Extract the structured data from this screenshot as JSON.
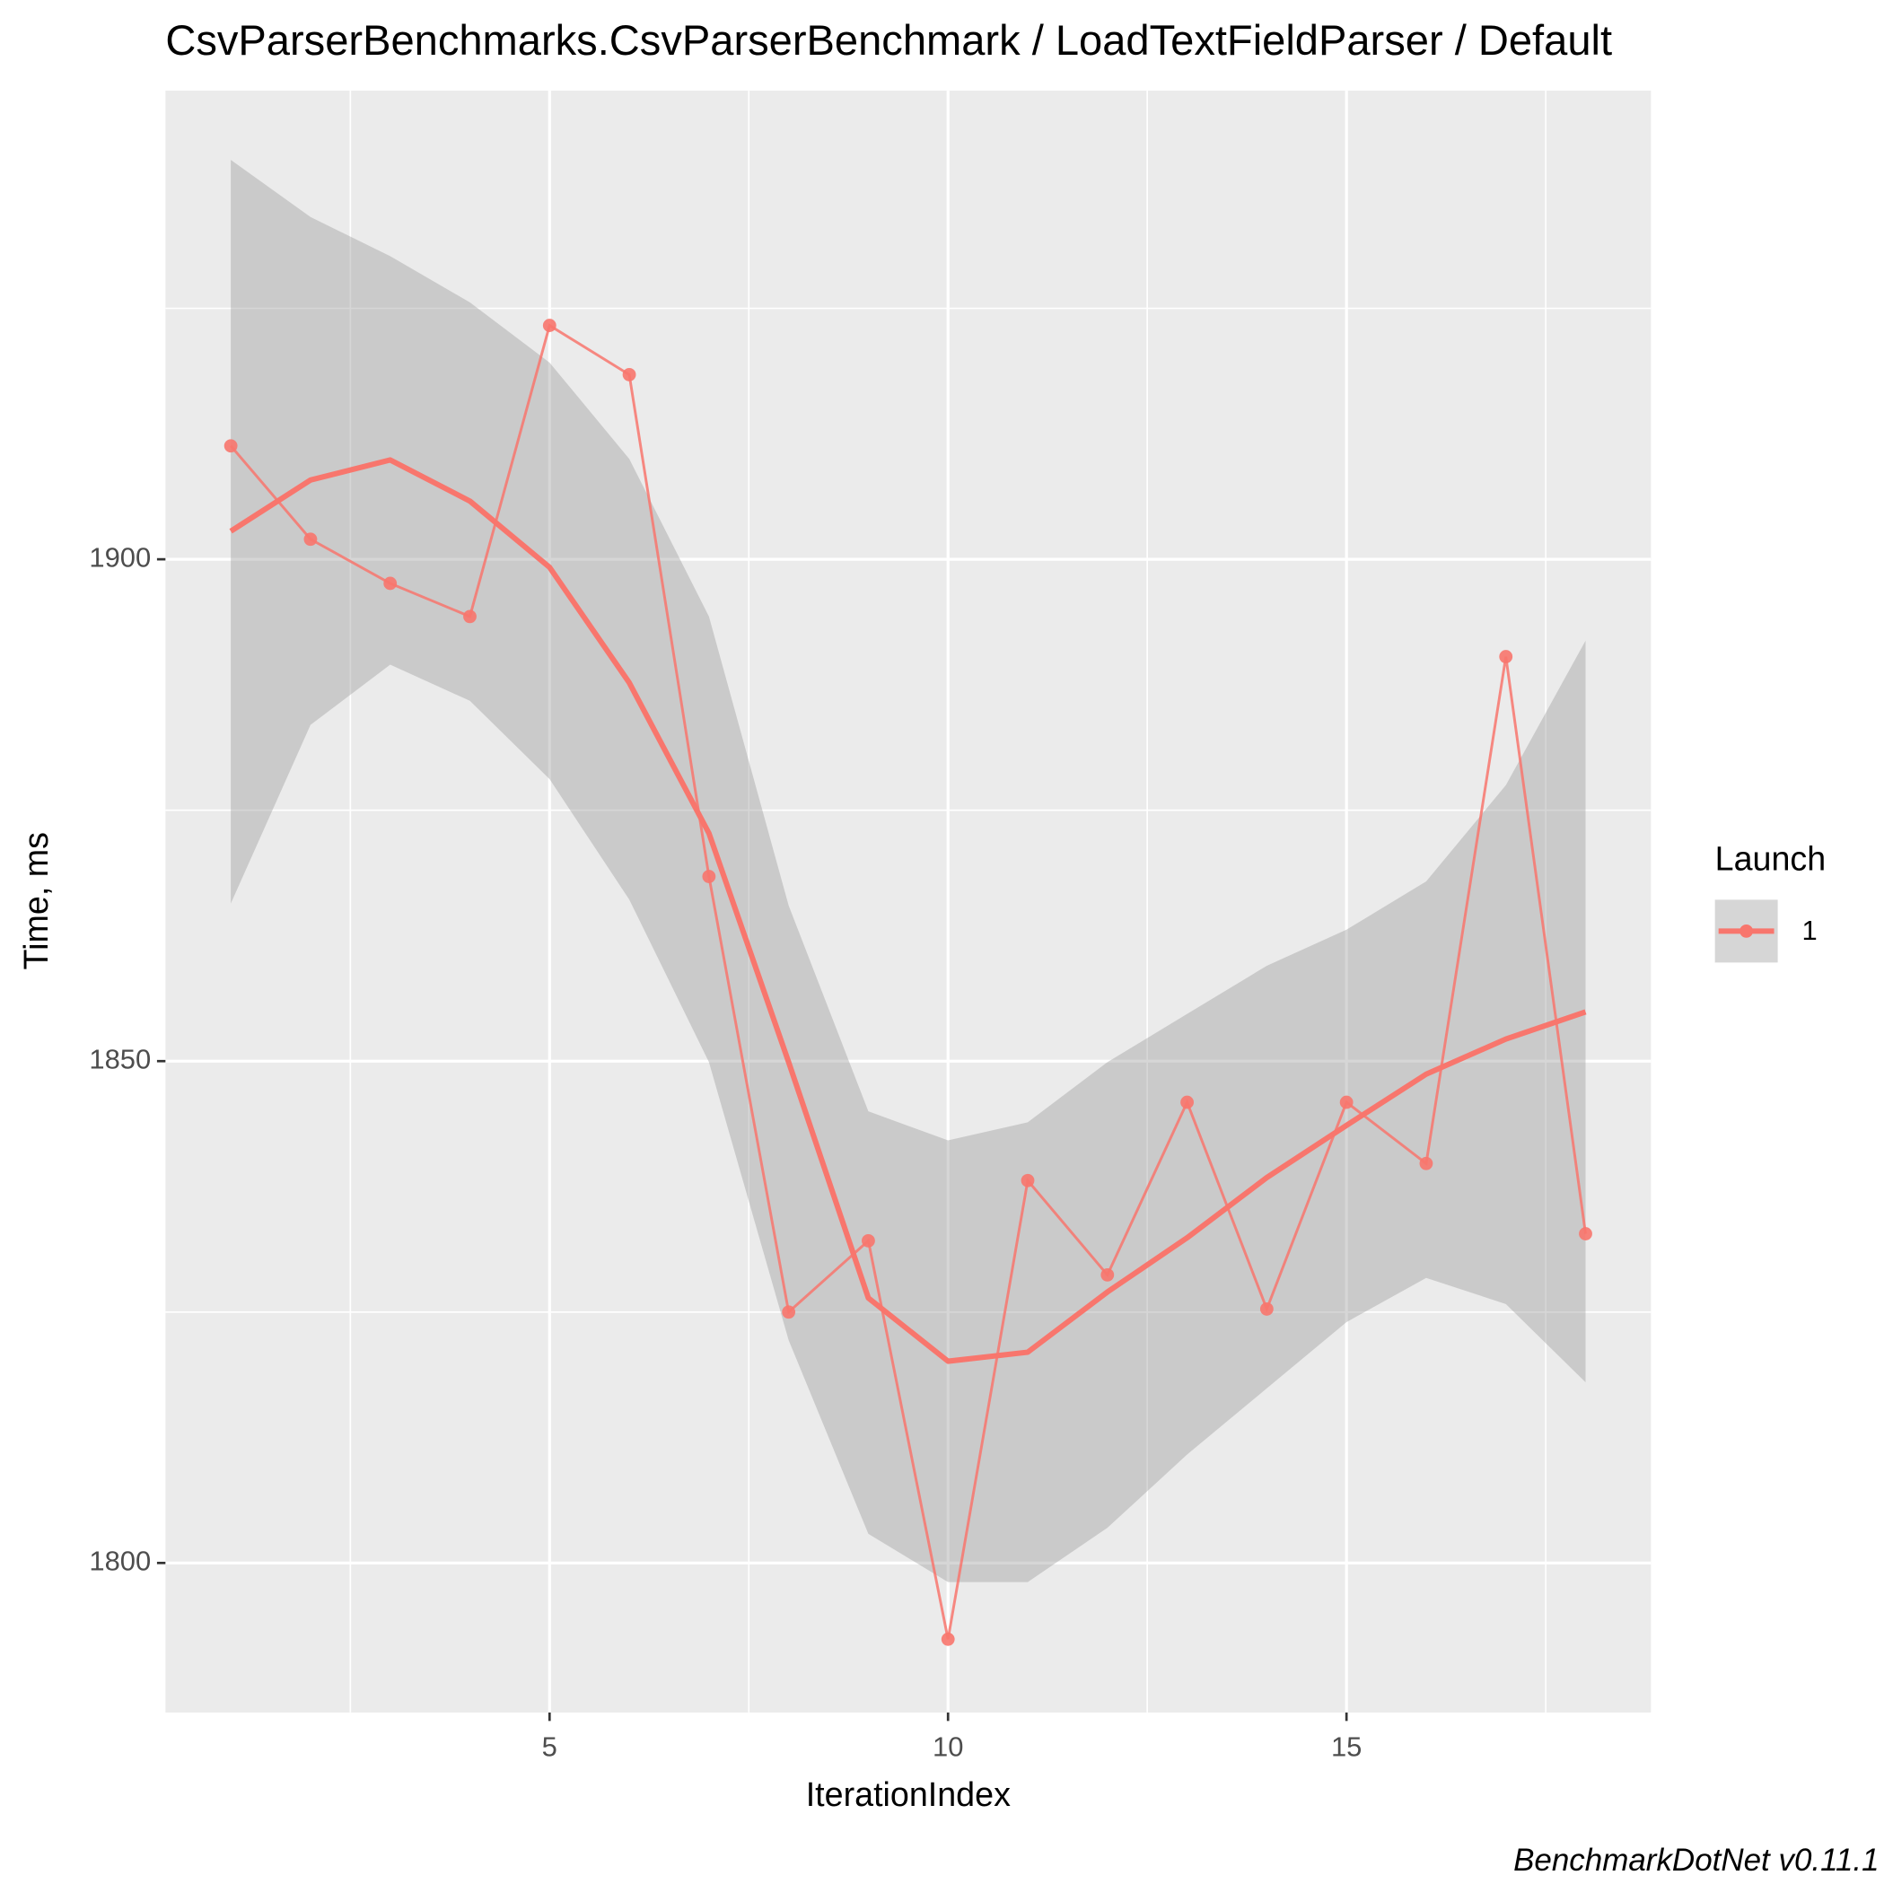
{
  "chart_data": {
    "type": "line",
    "title": "CsvParserBenchmarks.CsvParserBenchmark / LoadTextFieldParser / Default",
    "x_label": "IterationIndex",
    "y_label": "Time, ms",
    "caption": "BenchmarkDotNet v0.11.1",
    "legend_title": "Launch",
    "legend_position": "right",
    "x": [
      1,
      2,
      3,
      4,
      5,
      6,
      7,
      8,
      9,
      10,
      11,
      12,
      13,
      14,
      15,
      16,
      17,
      18
    ],
    "series": [
      {
        "name": "1",
        "color": "#f8766d",
        "values": [
          1911.3,
          1902.0,
          1897.6,
          1894.3,
          1923.3,
          1918.4,
          1868.4,
          1825.0,
          1832.1,
          1792.4,
          1838.1,
          1828.7,
          1845.9,
          1825.3,
          1845.9,
          1839.8,
          1890.3,
          1832.8
        ]
      }
    ],
    "smooth": {
      "values": [
        1902.8,
        1907.9,
        1909.9,
        1905.8,
        1899.2,
        1887.7,
        1872.7,
        1849.9,
        1826.4,
        1820.1,
        1821.0,
        1827.0,
        1832.4,
        1838.4,
        1843.6,
        1848.7,
        1852.2,
        1854.9
      ],
      "upper": [
        1939.8,
        1934.1,
        1930.2,
        1925.6,
        1919.6,
        1910.0,
        1894.3,
        1865.5,
        1845.0,
        1842.1,
        1843.9,
        1849.9,
        1854.7,
        1859.5,
        1863.1,
        1867.9,
        1877.5,
        1891.9
      ],
      "lower": [
        1865.7,
        1883.5,
        1889.5,
        1885.9,
        1878.1,
        1866.1,
        1849.9,
        1822.2,
        1802.9,
        1798.1,
        1798.1,
        1803.5,
        1810.8,
        1817.4,
        1824.0,
        1828.4,
        1825.8,
        1818.0
      ]
    },
    "xlim": [
      0.18,
      18.82
    ],
    "ylim": [
      1785.1,
      1946.7
    ],
    "xticks": [
      5,
      10,
      15
    ],
    "yticks": [
      1800,
      1850,
      1900
    ],
    "grid": true
  }
}
